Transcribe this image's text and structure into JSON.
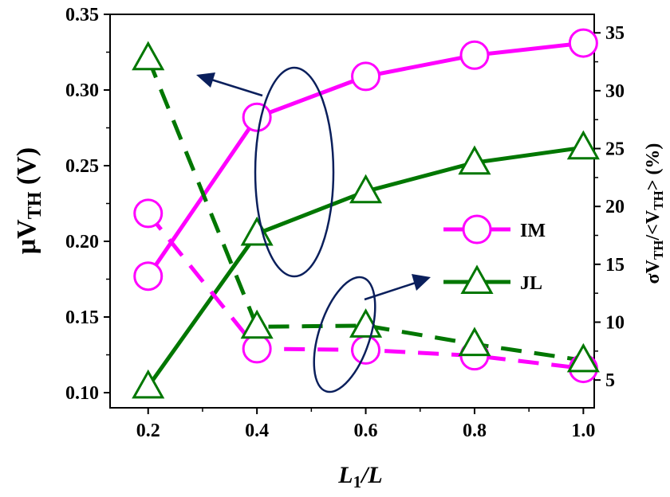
{
  "colors": {
    "im": "#ff00ff",
    "jl": "#007700",
    "annotation": "#0a1f5c",
    "axis": "#000000"
  },
  "chart_data": {
    "type": "line",
    "x": [
      0.2,
      0.4,
      0.6,
      0.8,
      1.0
    ],
    "xlabel": {
      "main": "L",
      "sub": "1",
      "tail": "/L"
    },
    "ylabel_left": {
      "main": "μV",
      "sub": "TH",
      "tail": " (V)"
    },
    "ylabel_right": {
      "p1": "σV",
      "s1": "TH",
      "p2": "/<V",
      "s2": "TH",
      "p3": "> (%)"
    },
    "xlim": [
      0.13,
      1.02
    ],
    "ylim_left": [
      0.09,
      0.35
    ],
    "ylim_right": [
      2.6,
      36.6
    ],
    "xticks": [
      "0.2",
      "0.4",
      "0.6",
      "0.8",
      "1.0"
    ],
    "yticks_left": [
      "0.10",
      "0.15",
      "0.20",
      "0.25",
      "0.30",
      "0.35"
    ],
    "yticks_right": [
      "5",
      "10",
      "15",
      "20",
      "25",
      "30",
      "35"
    ],
    "legend_position": "right",
    "series": [
      {
        "name": "IM",
        "key": "im",
        "marker": "circle",
        "axis": "left",
        "line": "solid",
        "values": [
          0.177,
          0.282,
          0.309,
          0.323,
          0.331
        ]
      },
      {
        "name": "JL",
        "key": "jl",
        "marker": "triangle",
        "axis": "left",
        "line": "solid",
        "values": [
          0.104,
          0.205,
          0.233,
          0.252,
          0.262
        ]
      },
      {
        "name": "IM",
        "key": "im",
        "marker": "circle",
        "axis": "right",
        "line": "dashed",
        "values": [
          19.4,
          7.7,
          7.6,
          7.1,
          6.0
        ]
      },
      {
        "name": "JL",
        "key": "jl",
        "marker": "triangle",
        "axis": "right",
        "line": "dashed",
        "values": [
          32.8,
          9.6,
          9.7,
          8.1,
          6.7
        ]
      }
    ],
    "legend": [
      {
        "label": "IM",
        "key": "im",
        "marker": "circle"
      },
      {
        "label": "JL",
        "key": "jl",
        "marker": "triangle"
      }
    ]
  }
}
